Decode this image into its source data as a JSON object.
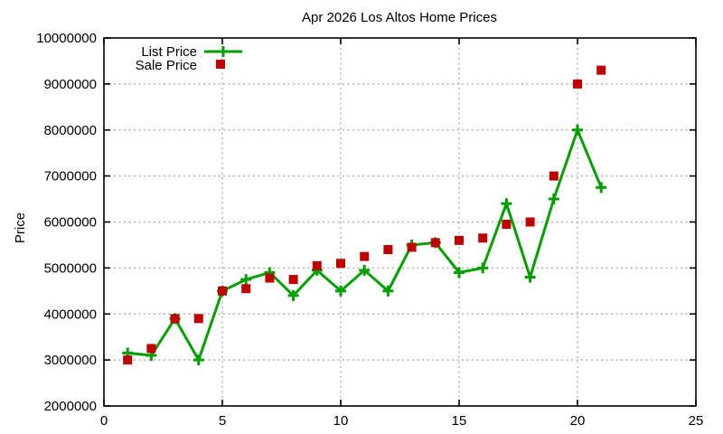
{
  "chart_data": {
    "type": "line",
    "title": "Apr 2026 Los Altos Home Prices",
    "xlabel": "",
    "ylabel": "Price",
    "xlim": [
      0,
      25
    ],
    "ylim": [
      2000000,
      10000000
    ],
    "x_ticks": [
      0,
      5,
      10,
      15,
      20,
      25
    ],
    "y_ticks": [
      2000000,
      3000000,
      4000000,
      5000000,
      6000000,
      7000000,
      8000000,
      9000000,
      10000000
    ],
    "grid": true,
    "legend": {
      "position": "top-left-inside"
    },
    "x": [
      1,
      2,
      3,
      4,
      5,
      6,
      7,
      8,
      9,
      10,
      11,
      12,
      13,
      14,
      15,
      16,
      17,
      18,
      19,
      20,
      21
    ],
    "series": [
      {
        "name": "List Price",
        "style": "line-with-points",
        "marker": "plus",
        "color": "#00a000",
        "values": [
          3150000,
          3100000,
          3900000,
          3000000,
          4500000,
          4750000,
          4900000,
          4400000,
          4950000,
          4500000,
          4950000,
          4500000,
          5500000,
          5550000,
          4900000,
          5000000,
          6400000,
          4800000,
          6500000,
          8000000,
          6750000
        ]
      },
      {
        "name": "Sale Price",
        "style": "points",
        "marker": "square",
        "color": "#c00000",
        "values": [
          3000000,
          3250000,
          3900000,
          3900000,
          4500000,
          4550000,
          4780000,
          4750000,
          5050000,
          5100000,
          5250000,
          5400000,
          5450000,
          5550000,
          5600000,
          5650000,
          5950000,
          6000000,
          7000000,
          9000000,
          9300000
        ]
      }
    ],
    "colors": {
      "grid": "#b0b0b0",
      "axis": "#000000",
      "text": "#000000",
      "background": "#ffffff"
    }
  }
}
